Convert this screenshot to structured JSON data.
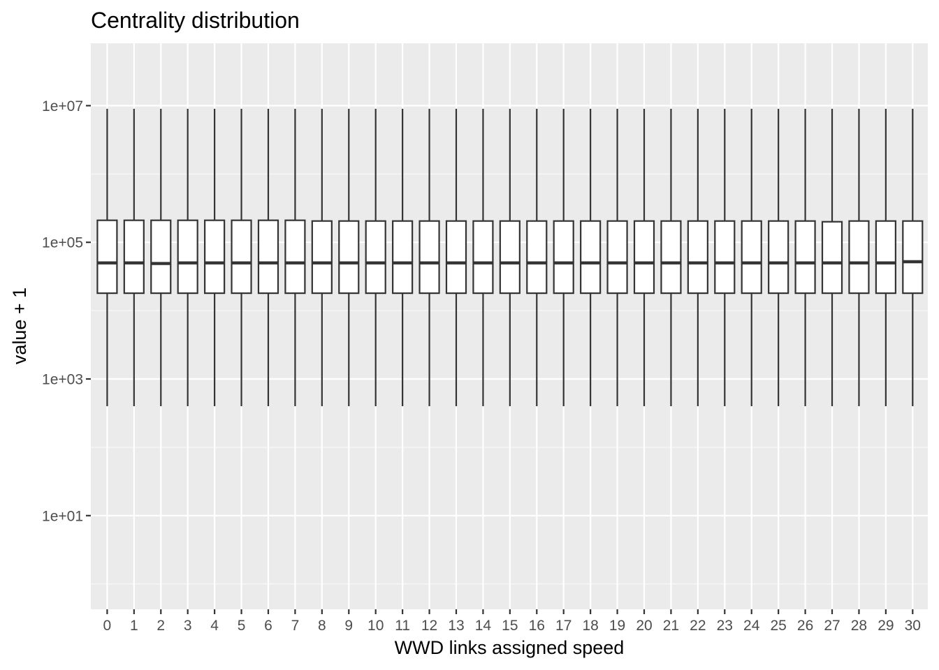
{
  "chart_data": {
    "type": "boxplot",
    "title": "Centrality distribution",
    "xlabel": "WWD links assigned speed",
    "ylabel": "value + 1",
    "y_scale": "log10",
    "ylim": [
      0.22,
      70000000
    ],
    "y_ticks": [
      {
        "value": 10,
        "label": "1e+01"
      },
      {
        "value": 1000,
        "label": "1e+03"
      },
      {
        "value": 100000,
        "label": "1e+05"
      },
      {
        "value": 10000000,
        "label": "1e+07"
      }
    ],
    "y_minor_ticks": [
      1,
      100,
      10000,
      1000000
    ],
    "grid": true,
    "categories": [
      "0",
      "1",
      "2",
      "3",
      "4",
      "5",
      "6",
      "7",
      "8",
      "9",
      "10",
      "11",
      "12",
      "13",
      "14",
      "15",
      "16",
      "17",
      "18",
      "19",
      "20",
      "21",
      "22",
      "23",
      "24",
      "25",
      "26",
      "27",
      "28",
      "29",
      "30"
    ],
    "boxes": [
      {
        "min": 400,
        "q1": 18000,
        "median": 50000,
        "q3": 210000,
        "max": 9000000
      },
      {
        "min": 400,
        "q1": 18000,
        "median": 50000,
        "q3": 210000,
        "max": 9000000
      },
      {
        "min": 400,
        "q1": 18000,
        "median": 49000,
        "q3": 210000,
        "max": 9000000
      },
      {
        "min": 400,
        "q1": 18000,
        "median": 50000,
        "q3": 210000,
        "max": 9000000
      },
      {
        "min": 400,
        "q1": 18000,
        "median": 50000,
        "q3": 210000,
        "max": 9000000
      },
      {
        "min": 400,
        "q1": 18000,
        "median": 50000,
        "q3": 210000,
        "max": 9000000
      },
      {
        "min": 400,
        "q1": 18000,
        "median": 50000,
        "q3": 210000,
        "max": 9000000
      },
      {
        "min": 400,
        "q1": 18000,
        "median": 50000,
        "q3": 210000,
        "max": 9000000
      },
      {
        "min": 400,
        "q1": 18000,
        "median": 50000,
        "q3": 205000,
        "max": 9000000
      },
      {
        "min": 400,
        "q1": 18000,
        "median": 50000,
        "q3": 205000,
        "max": 9000000
      },
      {
        "min": 400,
        "q1": 18000,
        "median": 50000,
        "q3": 205000,
        "max": 9000000
      },
      {
        "min": 400,
        "q1": 18000,
        "median": 50000,
        "q3": 205000,
        "max": 9000000
      },
      {
        "min": 400,
        "q1": 18000,
        "median": 50000,
        "q3": 205000,
        "max": 9000000
      },
      {
        "min": 400,
        "q1": 18000,
        "median": 50000,
        "q3": 205000,
        "max": 9000000
      },
      {
        "min": 400,
        "q1": 18000,
        "median": 50000,
        "q3": 205000,
        "max": 9000000
      },
      {
        "min": 400,
        "q1": 18000,
        "median": 50000,
        "q3": 205000,
        "max": 9000000
      },
      {
        "min": 400,
        "q1": 18000,
        "median": 50000,
        "q3": 205000,
        "max": 9000000
      },
      {
        "min": 400,
        "q1": 18000,
        "median": 50000,
        "q3": 205000,
        "max": 9000000
      },
      {
        "min": 400,
        "q1": 18000,
        "median": 50000,
        "q3": 205000,
        "max": 9000000
      },
      {
        "min": 400,
        "q1": 18000,
        "median": 50000,
        "q3": 205000,
        "max": 9000000
      },
      {
        "min": 400,
        "q1": 18000,
        "median": 50000,
        "q3": 205000,
        "max": 9000000
      },
      {
        "min": 400,
        "q1": 18000,
        "median": 50000,
        "q3": 205000,
        "max": 9000000
      },
      {
        "min": 400,
        "q1": 18000,
        "median": 50000,
        "q3": 205000,
        "max": 9000000
      },
      {
        "min": 400,
        "q1": 18000,
        "median": 50000,
        "q3": 205000,
        "max": 9000000
      },
      {
        "min": 400,
        "q1": 18000,
        "median": 50000,
        "q3": 205000,
        "max": 9000000
      },
      {
        "min": 400,
        "q1": 18000,
        "median": 50000,
        "q3": 205000,
        "max": 9000000
      },
      {
        "min": 400,
        "q1": 18000,
        "median": 50000,
        "q3": 205000,
        "max": 9000000
      },
      {
        "min": 400,
        "q1": 18000,
        "median": 50000,
        "q3": 200000,
        "max": 9000000
      },
      {
        "min": 400,
        "q1": 18000,
        "median": 50000,
        "q3": 205000,
        "max": 9000000
      },
      {
        "min": 400,
        "q1": 18000,
        "median": 50000,
        "q3": 205000,
        "max": 9000000
      },
      {
        "min": 400,
        "q1": 18000,
        "median": 52000,
        "q3": 205000,
        "max": 9000000
      }
    ],
    "colors": {
      "panel_background": "#ebebeb",
      "grid_major": "#ffffff",
      "grid_minor": "#f7f7f7",
      "box_fill": "#ffffff",
      "box_stroke": "#333333",
      "tick_mark": "#333333"
    }
  }
}
